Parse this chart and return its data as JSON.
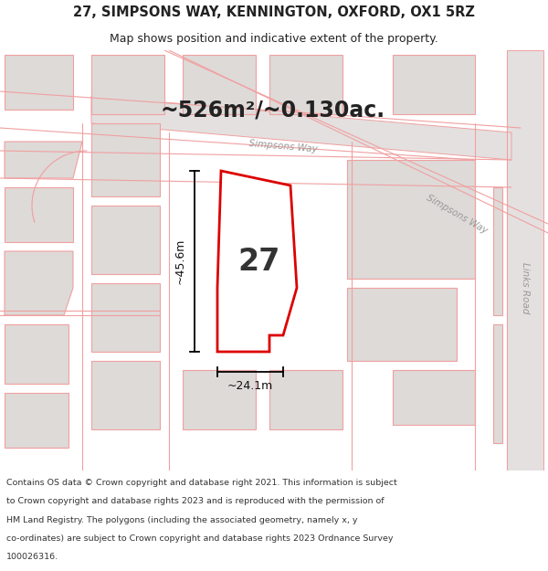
{
  "title_line1": "27, SIMPSONS WAY, KENNINGTON, OXFORD, OX1 5RZ",
  "title_line2": "Map shows position and indicative extent of the property.",
  "footer_lines": [
    "Contains OS data © Crown copyright and database right 2021. This information is subject",
    "to Crown copyright and database rights 2023 and is reproduced with the permission of",
    "HM Land Registry. The polygons (including the associated geometry, namely x, y",
    "co-ordinates) are subject to Crown copyright and database rights 2023 Ordnance Survey",
    "100026316."
  ],
  "area_text": "~526m²/~0.130ac.",
  "label_27": "27",
  "dim_width": "~24.1m",
  "dim_height": "~45.6m",
  "map_bg": "#ece8e8",
  "lot_fill": "#dedad8",
  "lot_edge": "#f0a0a0",
  "road_fill": "#e8e4e4",
  "property_fill": "white",
  "property_edge": "#dd0000",
  "road_line_color": "#f0a0a0",
  "road_text_color": "#999999",
  "title_color": "#222222",
  "footer_color": "#333333",
  "title_fontsize": 10.5,
  "subtitle_fontsize": 9.0,
  "area_fontsize": 17,
  "label_fontsize": 24,
  "dim_fontsize": 9,
  "road_label_fontsize": 7.5,
  "footer_fontsize": 6.8
}
